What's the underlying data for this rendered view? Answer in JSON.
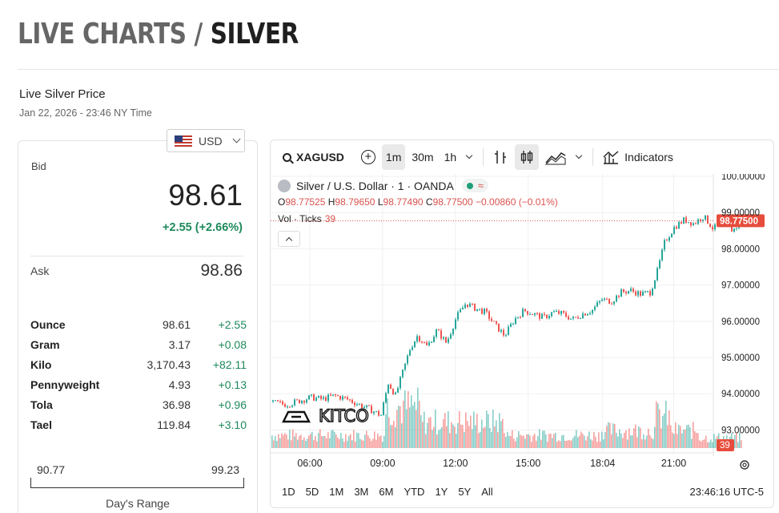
{
  "header": {
    "title_prefix": "LIVE CHARTS / ",
    "title_main": "SILVER"
  },
  "live": {
    "label": "Live Silver Price",
    "timestamp": "Jan 22, 2026 - 23:46 NY Time"
  },
  "currency": {
    "selected": "USD",
    "flag_icon": "us-flag-icon"
  },
  "quote": {
    "bid_label": "Bid",
    "bid": "98.61",
    "change": "+2.55 (+2.66%)",
    "ask_label": "Ask",
    "ask": "98.86",
    "positive_color": "#1e8a5c"
  },
  "units": [
    {
      "name": "Ounce",
      "price": "98.61",
      "change": "+2.55"
    },
    {
      "name": "Gram",
      "price": "3.17",
      "change": "+0.08"
    },
    {
      "name": "Kilo",
      "price": "3,170.43",
      "change": "+82.11"
    },
    {
      "name": "Pennyweight",
      "price": "4.93",
      "change": "+0.13"
    },
    {
      "name": "Tola",
      "price": "36.98",
      "change": "+0.96"
    },
    {
      "name": "Tael",
      "price": "119.84",
      "change": "+3.10"
    }
  ],
  "day_range": {
    "low": "90.77",
    "high": "99.23",
    "label": "Day's Range"
  },
  "toolbar": {
    "symbol": "XAGUSD",
    "intervals": [
      "1m",
      "30m",
      "1h"
    ],
    "active_interval": "1m",
    "indicators_label": "Indicators"
  },
  "legend": {
    "title": "Silver / U.S. Dollar · 1 · OANDA",
    "open_label": "O",
    "open": "98.77525",
    "high_label": "H",
    "high": "98.79650",
    "low_label": "L",
    "low": "98.77490",
    "close_label": "C",
    "close": "98.77500",
    "change": "−0.00860 (−0.01%)",
    "vol_label": "Vol · Ticks",
    "vol_value": "39"
  },
  "watermark": "KITCO",
  "range_buttons": [
    "1D",
    "5D",
    "1M",
    "3M",
    "6M",
    "YTD",
    "1Y",
    "5Y",
    "All"
  ],
  "timezone_clock": "23:46:16 UTC-5",
  "chart_data": {
    "type": "line",
    "x_ticks": [
      "06:00",
      "09:00",
      "12:00",
      "15:00",
      "18:04",
      "21:00"
    ],
    "y_ticks": [
      "100.00000",
      "99.00000",
      "98.00000",
      "97.00000",
      "96.00000",
      "95.00000",
      "94.00000",
      "93.00000"
    ],
    "ylim": [
      92.4,
      100.1
    ],
    "last_price_label": "98.77500",
    "last_price": 98.775,
    "volume_label": "39",
    "up_color": "#26a69a",
    "down_color": "#ef5350",
    "series": [
      {
        "hours": [
          4.0,
          4.5,
          5.0,
          5.5,
          6.0,
          6.5,
          7.0,
          7.5,
          8.0,
          8.5,
          8.9,
          9.2,
          9.5,
          9.8,
          10.1,
          10.4,
          10.8,
          11.2,
          11.6,
          12.0,
          12.4,
          12.8,
          13.2,
          13.6,
          14.0,
          14.4,
          14.8,
          15.2,
          15.6,
          16.0,
          16.4,
          16.8,
          17.2,
          17.6,
          18.0,
          18.4,
          18.8,
          19.2,
          19.6,
          20.0,
          20.3,
          20.6,
          21.0,
          21.4,
          21.8,
          22.2,
          22.6,
          23.0,
          23.4,
          23.77
        ],
        "values": [
          93.9,
          93.75,
          93.7,
          93.8,
          93.9,
          93.85,
          93.95,
          93.85,
          93.7,
          93.55,
          93.4,
          94.3,
          93.95,
          94.6,
          95.25,
          95.6,
          95.3,
          95.75,
          95.4,
          96.1,
          96.5,
          96.35,
          96.25,
          95.9,
          95.6,
          96.05,
          96.3,
          96.2,
          96.1,
          96.25,
          96.2,
          96.05,
          96.2,
          96.3,
          96.6,
          96.55,
          96.8,
          96.85,
          96.75,
          96.8,
          97.4,
          98.2,
          98.6,
          98.8,
          98.7,
          98.9,
          98.55,
          98.75,
          98.5,
          98.775
        ]
      }
    ]
  }
}
